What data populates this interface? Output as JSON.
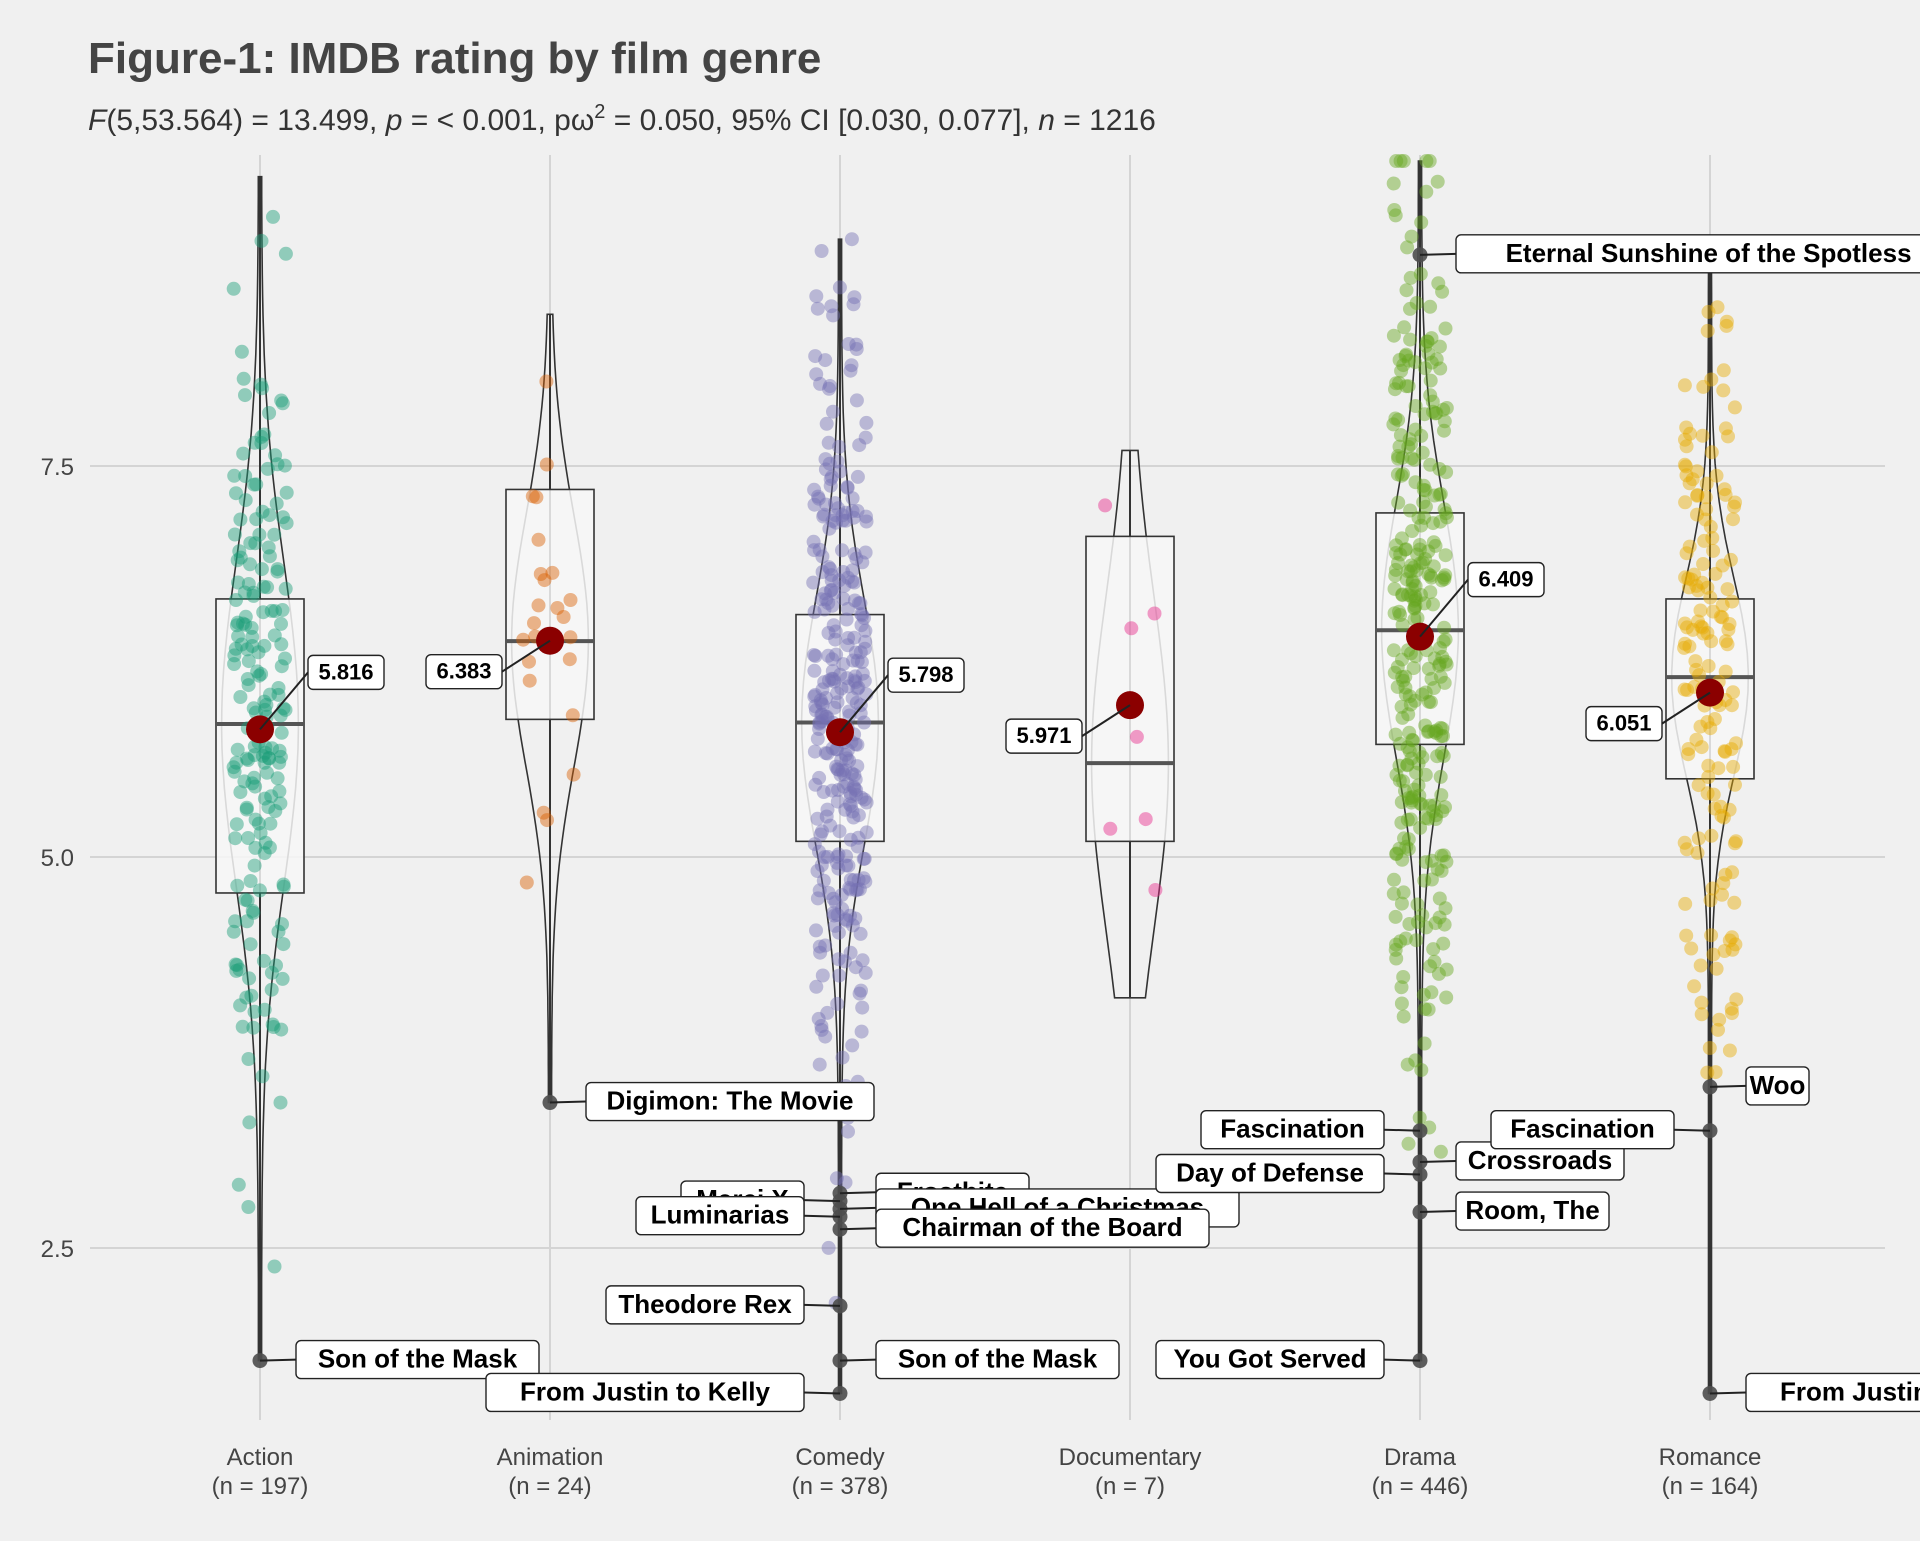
{
  "chart_data": {
    "type": "violin",
    "title": "Figure-1: IMDB rating by film genre",
    "subtitle": {
      "F": "F",
      "stat": "(5,53.564) = 13.499, ",
      "p": "p",
      "p_val": " = < 0.001, pω",
      "sup": "2",
      "rest": " = 0.050, 95% CI [0.030, 0.077], ",
      "n": "n",
      "n_val": " = 1216"
    },
    "xlabel": "",
    "ylabel": "",
    "ylim": [
      1.3,
      9.6
    ],
    "yticks": [
      "2.5",
      "5.0",
      "7.5"
    ],
    "grid": true,
    "categories": [
      {
        "name": "Action",
        "n_label": "(n = 197)",
        "color": "#1b9e77",
        "min": 1.78,
        "q1": 4.77,
        "median": 5.85,
        "q3": 6.65,
        "max": 9.35,
        "mean": 5.816,
        "mean_label": "5.816",
        "outliers": [
          {
            "y": 1.78,
            "label": "Son of the Mask"
          }
        ]
      },
      {
        "name": "Animation",
        "n_label": "(n = 24)",
        "color": "#d95f02",
        "min": 3.43,
        "q1": 5.88,
        "median": 6.38,
        "q3": 7.35,
        "max": 8.47,
        "mean": 6.383,
        "mean_label": "6.383",
        "outliers": [
          {
            "y": 3.43,
            "label": "Digimon: The Movie"
          }
        ]
      },
      {
        "name": "Comedy",
        "n_label": "(n = 378)",
        "color": "#7570b3",
        "min": 1.57,
        "q1": 5.1,
        "median": 5.86,
        "q3": 6.55,
        "max": 8.95,
        "mean": 5.798,
        "mean_label": "5.798",
        "outliers": [
          {
            "y": 2.85,
            "label": "Frostbite"
          },
          {
            "y": 2.8,
            "label": "Marci X"
          },
          {
            "y": 2.75,
            "label": "One Hell of a Christmas"
          },
          {
            "y": 2.7,
            "label": "Luminarias"
          },
          {
            "y": 2.62,
            "label": "Chairman of the Board"
          },
          {
            "y": 2.13,
            "label": "Theodore Rex"
          },
          {
            "y": 1.78,
            "label": "Son of the Mask"
          },
          {
            "y": 1.57,
            "label": "From Justin to Kelly"
          }
        ]
      },
      {
        "name": "Documentary",
        "n_label": "(n = 7)",
        "color": "#e7298a",
        "min": 4.1,
        "q1": 5.1,
        "median": 5.6,
        "q3": 7.05,
        "max": 7.6,
        "mean": 5.971,
        "mean_label": "5.971",
        "outliers": []
      },
      {
        "name": "Drama",
        "n_label": "(n = 446)",
        "color": "#66a61e",
        "min": 1.78,
        "q1": 5.72,
        "median": 6.45,
        "q3": 7.2,
        "max": 9.45,
        "mean": 6.409,
        "mean_label": "6.409",
        "outliers": [
          {
            "y": 8.85,
            "label": "Eternal Sunshine of the Spotless Mind"
          },
          {
            "y": 3.25,
            "label": "Fascination"
          },
          {
            "y": 3.05,
            "label": "Crossroads"
          },
          {
            "y": 2.97,
            "label": "Day of Defense"
          },
          {
            "y": 2.73,
            "label": "Room, The"
          },
          {
            "y": 1.78,
            "label": "You Got Served"
          }
        ]
      },
      {
        "name": "Romance",
        "n_label": "(n = 164)",
        "color": "#e6ab02",
        "min": 1.57,
        "q1": 5.5,
        "median": 6.15,
        "q3": 6.65,
        "max": 8.85,
        "mean": 6.051,
        "mean_label": "6.051",
        "outliers": [
          {
            "y": 3.53,
            "label": "Woo"
          },
          {
            "y": 3.25,
            "label": "Fascination"
          },
          {
            "y": 1.57,
            "label": "From Justin to Kelly"
          }
        ]
      }
    ]
  }
}
